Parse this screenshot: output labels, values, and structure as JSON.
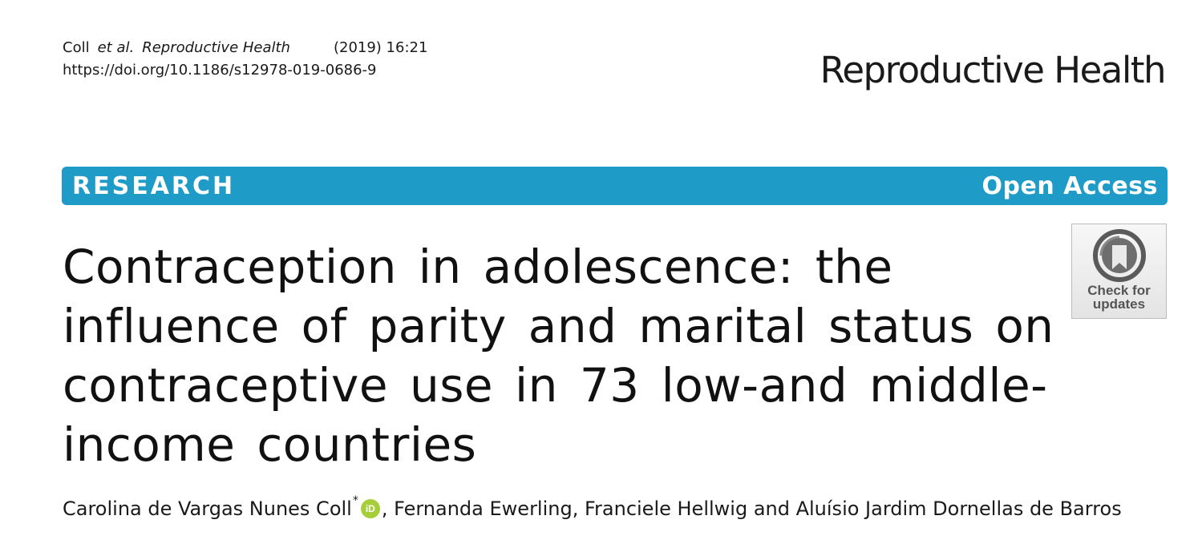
{
  "header": {
    "cite_author": "Coll",
    "cite_etal": "et al.",
    "cite_journal": "Reproductive Health",
    "cite_volume": "(2019) 16:21",
    "doi": "https://doi.org/10.1186/s12978-019-0686-9",
    "journal_name": "Reproductive Health"
  },
  "banner": {
    "article_type": "RESEARCH",
    "access": "Open Access",
    "color": "#1f9bc7"
  },
  "check_updates": {
    "label_line1": "Check for",
    "label_line2": "updates",
    "icon": "check-for-updates-icon"
  },
  "title": {
    "lines": [
      "Contraception in adolescence: the",
      "influence of parity and marital status on",
      "contraceptive use in 73 low-and middle-",
      "income countries"
    ]
  },
  "authors": {
    "first": "Carolina de Vargas Nunes Coll",
    "first_mark": "*",
    "orcid_label": "iD",
    "rest": ", Fernanda Ewerling, Franciele Hellwig and Aluísio Jardim Dornellas de Barros",
    "orcid_color": "#a6ce39"
  }
}
